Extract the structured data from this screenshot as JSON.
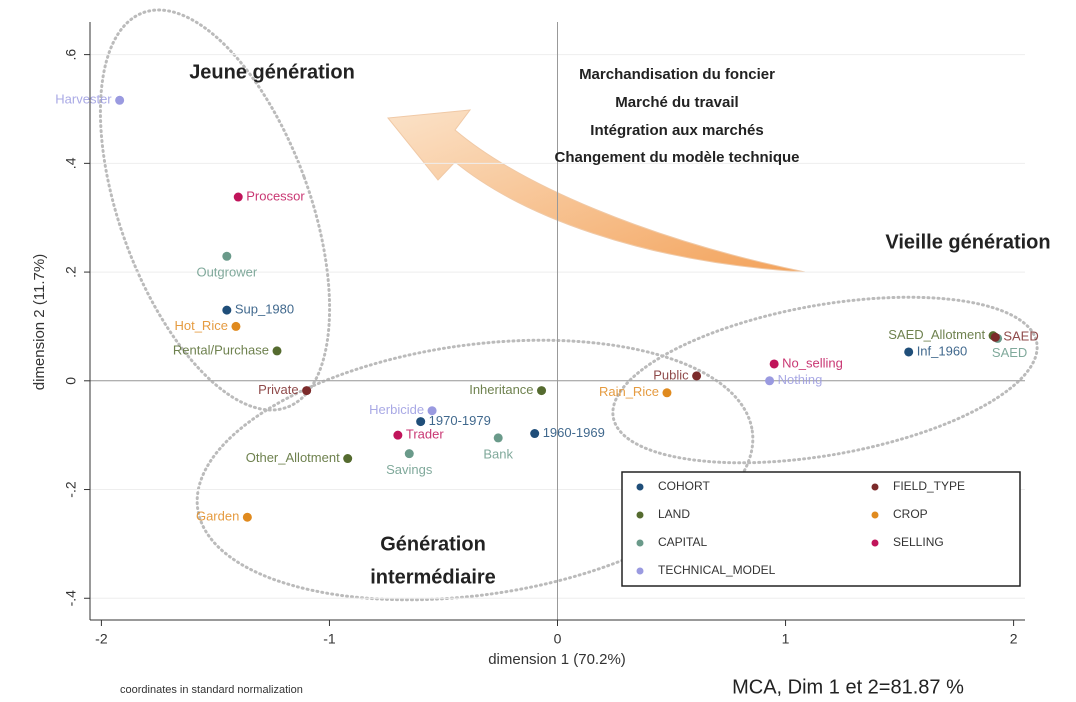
{
  "chart_data": {
    "type": "scatter",
    "x_label": "dimension 1 (70.2%)",
    "y_label": "dimension 2 (11.7%)",
    "note": "coordinates in standard normalization",
    "caption": "MCA, Dim 1 et 2=81.87 %",
    "annotations": [
      "Jeune génération",
      "Marchandisation du foncier",
      "Marché du travail",
      "Intégration aux marchés",
      "Changement du modèle technique",
      "Vieille génération",
      "Génération",
      "intermédiaire"
    ],
    "xlim": [
      -2.05,
      2.05
    ],
    "ylim": [
      -0.44,
      0.66
    ],
    "xticks": [
      -2,
      -1,
      0,
      1,
      2
    ],
    "yticks": [
      {
        "value": -0.4,
        "label": "-.4"
      },
      {
        "value": -0.2,
        "label": "-.2"
      },
      0,
      {
        "value": 0.2,
        "label": ".2"
      },
      {
        "value": 0.4,
        "label": ".4"
      },
      {
        "value": 0.6,
        "label": ".6"
      }
    ],
    "grid": true,
    "legend": "lower right",
    "series": [
      {
        "name": "COHORT",
        "color": "#1f4e79",
        "labels": [
          "Sup_1980",
          "1970-1979",
          "1960-1969",
          "Inf_1960"
        ],
        "x": [
          -1.45,
          -0.6,
          -0.1,
          1.54
        ],
        "values": [
          0.13,
          -0.075,
          -0.097,
          0.053
        ]
      },
      {
        "name": "LAND",
        "color": "#556b2f",
        "labels": [
          "Rental/Purchase",
          "Other_Allotment",
          "Inheritance",
          "SAED_Allotment"
        ],
        "x": [
          -1.23,
          -0.92,
          -0.07,
          1.91
        ],
        "values": [
          0.055,
          -0.143,
          -0.018,
          0.083
        ]
      },
      {
        "name": "CAPITAL",
        "color": "#6a9a8a",
        "labels": [
          "Outgrower",
          "Savings",
          "Bank",
          "SAED"
        ],
        "x": [
          -1.45,
          -0.65,
          -0.26,
          1.93
        ],
        "values": [
          0.229,
          -0.134,
          -0.105,
          0.078
        ]
      },
      {
        "name": "TECHNICAL_MODEL",
        "color": "#9a9ae0",
        "labels": [
          "Harvester",
          "Herbicide",
          "Nothing"
        ],
        "x": [
          -1.92,
          -0.55,
          0.93
        ],
        "values": [
          0.516,
          -0.055,
          0.0
        ]
      },
      {
        "name": "FIELD_TYPE",
        "color": "#7b2a2a",
        "labels": [
          "Private",
          "Public",
          "SAED"
        ],
        "x": [
          -1.1,
          0.61,
          1.92
        ],
        "values": [
          -0.018,
          0.009,
          0.08
        ]
      },
      {
        "name": "CROP",
        "color": "#e08a1e",
        "labels": [
          "Hot_Rice",
          "Garden",
          "Rain_Rice"
        ],
        "x": [
          -1.41,
          -1.36,
          0.48
        ],
        "values": [
          0.1,
          -0.251,
          -0.022
        ]
      },
      {
        "name": "SELLING",
        "color": "#c0145a",
        "labels": [
          "Processor",
          "Trader",
          "No_selling"
        ],
        "x": [
          -1.4,
          -0.7,
          0.95
        ],
        "values": [
          0.338,
          -0.1,
          0.031
        ]
      }
    ]
  }
}
